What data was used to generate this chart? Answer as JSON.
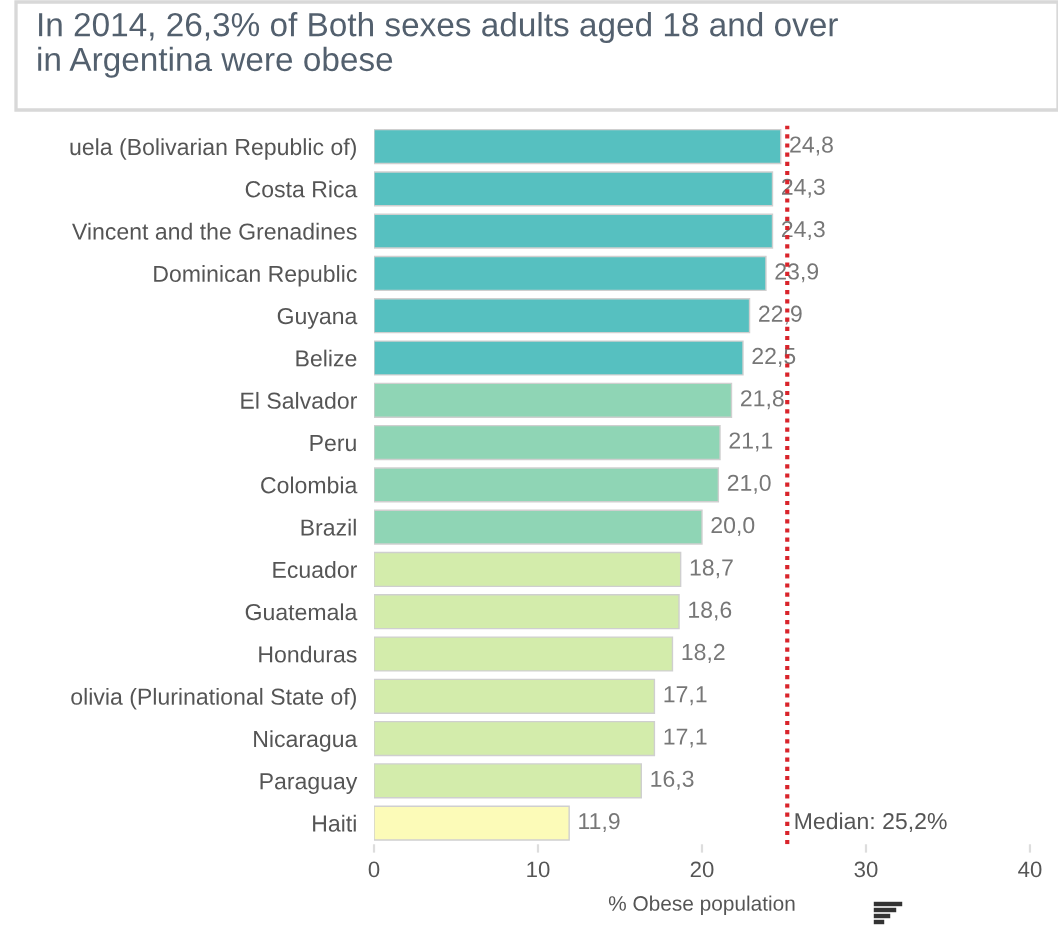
{
  "chart_data": {
    "type": "bar",
    "orientation": "horizontal",
    "title": "In 2014, 26,3% of Both sexes adults aged 18 and over\nin Argentina were obese",
    "xlabel": "% Obese population",
    "categories": [
      "uela (Bolivarian Republic of)",
      "Costa Rica",
      "Vincent and the Grenadines",
      "Dominican Republic",
      "Guyana",
      "Belize",
      "El Salvador",
      "Peru",
      "Colombia",
      "Brazil",
      "Ecuador",
      "Guatemala",
      "Honduras",
      "olivia (Plurinational State of)",
      "Nicaragua",
      "Paraguay",
      "Haiti"
    ],
    "values": [
      24.8,
      24.3,
      24.3,
      23.9,
      22.9,
      22.5,
      21.8,
      21.1,
      21.0,
      20.0,
      18.7,
      18.6,
      18.2,
      17.1,
      17.1,
      16.3,
      11.9
    ],
    "value_labels": [
      "24,8",
      "24,3",
      "24,3",
      "23,9",
      "22,9",
      "22,5",
      "21,8",
      "21,1",
      "21,0",
      "20,0",
      "18,7",
      "18,6",
      "18,2",
      "17,1",
      "17,1",
      "16,3",
      "11,9"
    ],
    "colors": [
      "#56c0c0",
      "#56c0c0",
      "#56c0c0",
      "#56c0c0",
      "#56c0c0",
      "#56c0c0",
      "#8fd5b5",
      "#8fd5b5",
      "#8fd5b5",
      "#8fd5b5",
      "#d3ecab",
      "#d3ecab",
      "#d3ecab",
      "#d3ecab",
      "#d3ecab",
      "#d3ecab",
      "#fcfbb8"
    ],
    "xlim": [
      0,
      40
    ],
    "xticks": [
      0,
      10,
      20,
      30,
      40
    ],
    "ref_lines": [
      {
        "axis": "x",
        "value": 25.2,
        "label": "Median: 25,2%",
        "color": "#d9242b",
        "line_style": "dotted"
      }
    ],
    "grid": false,
    "legend": false
  }
}
